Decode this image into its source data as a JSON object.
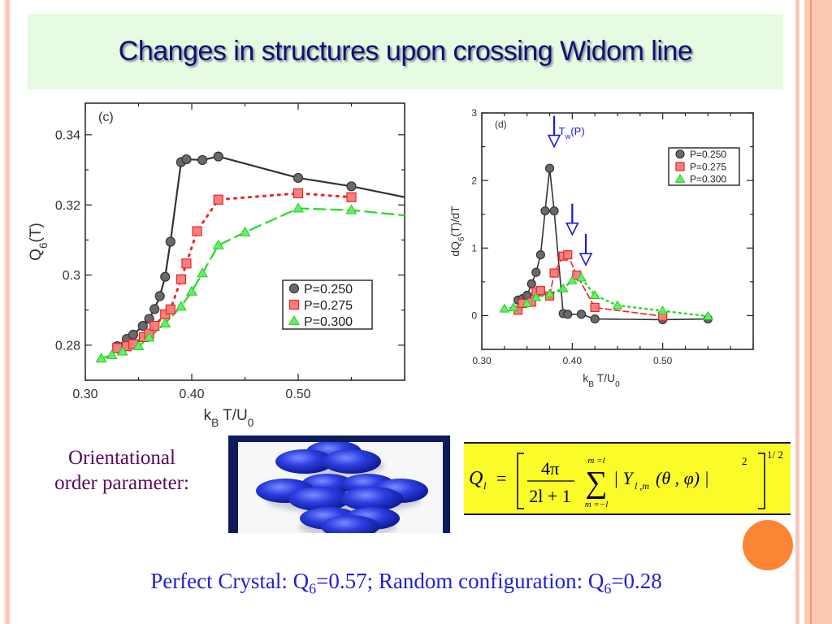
{
  "slide": {
    "title": "Changes in structures upon crossing Widom line",
    "orientational_label_line1": "Orientational",
    "orientational_label_line2": "order parameter:",
    "formula": {
      "lhs": "Q",
      "lhs_sub": "l",
      "equals": "=",
      "numerator": "4π",
      "denominator": "2l + 1",
      "sum_upper": "m =l",
      "sum_lower": "m =−l",
      "sum_symbol": "∑",
      "term": "| Y",
      "term_sub": "l ,m",
      "args": "(θ , φ) |",
      "power_inner": "2",
      "power_outer": "1/ 2"
    },
    "bottom_text": {
      "part1": "Perfect Crystal: Q",
      "sub1": "6",
      "part2": "=0.57;  Random configuration:  Q",
      "sub2": "6",
      "part3": "=0.28"
    },
    "colors": {
      "title": "#11116b",
      "title_bg": "#e6fbe2",
      "label": "#5a0a5a",
      "bottom_text": "#1f1fd6",
      "formula_bg": "#fbfb2a",
      "accent_circle": "#fb8535",
      "series_black": "#333333",
      "series_red": "#ee2222",
      "series_green": "#22dd22",
      "arrow_blue": "#1a1ad8"
    }
  },
  "chart_data": [
    {
      "type": "line",
      "panel_label": "(c)",
      "title": "",
      "xlabel": "k_B T/U_0",
      "ylabel": "Q_6(T)",
      "xlim": [
        0.3,
        0.6
      ],
      "ylim": [
        0.27,
        0.349
      ],
      "xticks": [
        0.3,
        0.4,
        0.5
      ],
      "xtick_labels": [
        "0.30",
        "0.40",
        "0.50"
      ],
      "yticks": [
        0.28,
        0.3,
        0.32,
        0.34
      ],
      "ytick_labels": [
        "0.28",
        "0.3",
        "0.32",
        "0.34"
      ],
      "legend_placement": "lower-right",
      "series": [
        {
          "name": "P=0.250",
          "marker": "circle",
          "line": "solid",
          "color": "#333333",
          "x": [
            0.33,
            0.339,
            0.345,
            0.354,
            0.36,
            0.365,
            0.37,
            0.375,
            0.38,
            0.39,
            0.395,
            0.41,
            0.425,
            0.5,
            0.55
          ],
          "y": [
            0.2797,
            0.2818,
            0.283,
            0.2855,
            0.2875,
            0.2903,
            0.294,
            0.2995,
            0.3095,
            0.3322,
            0.333,
            0.3328,
            0.3338,
            0.3277,
            0.3253
          ],
          "line_end": [
            0.6,
            0.3222
          ]
        },
        {
          "name": "P=0.275",
          "marker": "square",
          "line": "dotted",
          "color": "#ee2222",
          "x": [
            0.33,
            0.339,
            0.345,
            0.355,
            0.36,
            0.365,
            0.375,
            0.38,
            0.39,
            0.395,
            0.405,
            0.425,
            0.5,
            0.55
          ],
          "y": [
            0.2792,
            0.2797,
            0.2803,
            0.2823,
            0.2833,
            0.2855,
            0.2888,
            0.2902,
            0.2988,
            0.3033,
            0.3125,
            0.3215,
            0.3233,
            0.3222
          ]
        },
        {
          "name": "P=0.300",
          "marker": "triangle",
          "line": "dashed",
          "color": "#22dd22",
          "x": [
            0.315,
            0.325,
            0.335,
            0.35,
            0.36,
            0.375,
            0.39,
            0.4,
            0.41,
            0.425,
            0.45,
            0.5,
            0.55
          ],
          "y": [
            0.2762,
            0.2772,
            0.2782,
            0.2797,
            0.2822,
            0.2862,
            0.291,
            0.2953,
            0.3005,
            0.3085,
            0.3122,
            0.319,
            0.3185
          ],
          "line_end": [
            0.6,
            0.317
          ]
        }
      ]
    },
    {
      "type": "line",
      "panel_label": "(d)",
      "title": "",
      "xlabel": "k_B T/U_0",
      "ylabel": "dQ_6(T)/dT",
      "xlim": [
        0.3,
        0.6
      ],
      "ylim": [
        -0.5,
        3.0
      ],
      "xticks": [
        0.3,
        0.4,
        0.5
      ],
      "xtick_labels": [
        "0.30",
        "0.40",
        "0.50"
      ],
      "yticks": [
        0,
        1,
        2,
        3
      ],
      "ytick_labels": [
        "0",
        "1",
        "2",
        "3"
      ],
      "legend_placement": "top-right",
      "annotation": "T_w(P)",
      "widom_arrows_x": [
        0.38,
        0.4,
        0.415
      ],
      "series": [
        {
          "name": "P=0.250",
          "marker": "circle",
          "line": "solid",
          "color": "#333333",
          "x": [
            0.34,
            0.345,
            0.35,
            0.355,
            0.36,
            0.365,
            0.37,
            0.375,
            0.38,
            0.39,
            0.395,
            0.41,
            0.425,
            0.5,
            0.55
          ],
          "y": [
            0.23,
            0.25,
            0.3,
            0.47,
            0.64,
            0.9,
            1.55,
            2.18,
            1.55,
            0.03,
            0.02,
            0.02,
            -0.05,
            -0.06,
            -0.05
          ]
        },
        {
          "name": "P=0.275",
          "marker": "square",
          "line": "dashed",
          "color": "#ee2222",
          "x": [
            0.34,
            0.345,
            0.355,
            0.36,
            0.365,
            0.375,
            0.38,
            0.39,
            0.395,
            0.405,
            0.425,
            0.5
          ],
          "y": [
            0.08,
            0.18,
            0.2,
            0.35,
            0.37,
            0.29,
            0.63,
            0.88,
            0.9,
            0.6,
            0.12,
            -0.01
          ]
        },
        {
          "name": "P=0.300",
          "marker": "triangle",
          "line": "dotted",
          "color": "#22dd22",
          "x": [
            0.325,
            0.335,
            0.35,
            0.36,
            0.375,
            0.39,
            0.4,
            0.41,
            0.425,
            0.45,
            0.5,
            0.55
          ],
          "y": [
            0.1,
            0.12,
            0.18,
            0.27,
            0.32,
            0.4,
            0.52,
            0.56,
            0.3,
            0.15,
            0.07,
            -0.01
          ]
        }
      ]
    }
  ]
}
